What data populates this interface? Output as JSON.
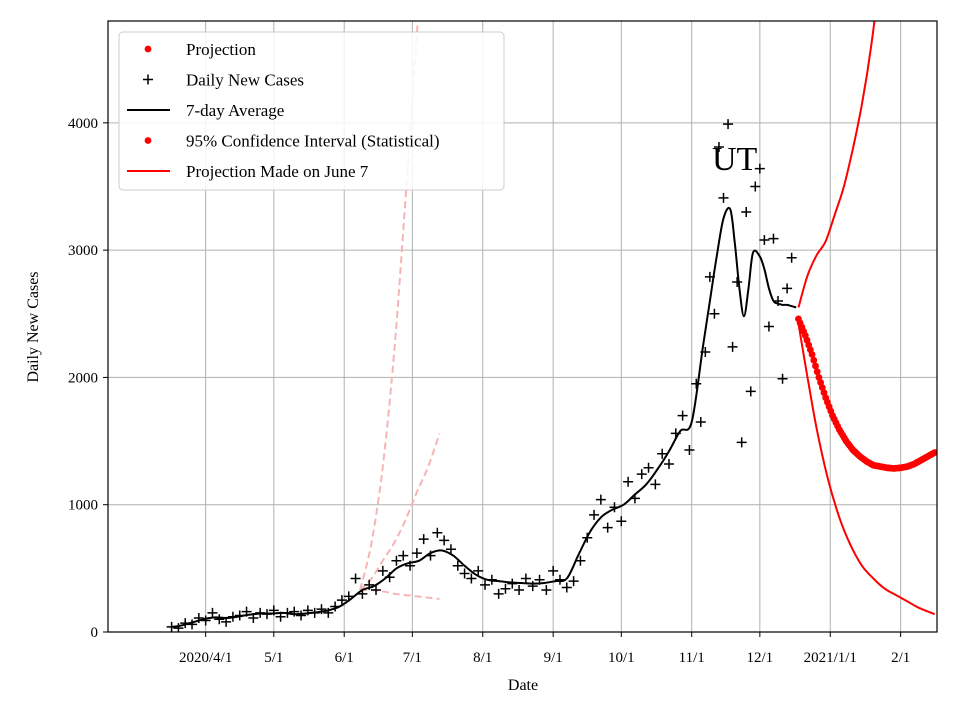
{
  "chart_data": {
    "type": "line",
    "title": "",
    "annotation": "UT",
    "xlabel": "Date",
    "ylabel": "Daily New Cases",
    "x_range_days": [
      -12,
      353
    ],
    "ylim": [
      0,
      4800
    ],
    "grid": true,
    "legend_placement": "top-left",
    "x_ticks": [
      {
        "label": "2020/4/1",
        "day": 31
      },
      {
        "label": "5/1",
        "day": 61
      },
      {
        "label": "6/1",
        "day": 92
      },
      {
        "label": "7/1",
        "day": 122
      },
      {
        "label": "8/1",
        "day": 153
      },
      {
        "label": "9/1",
        "day": 184
      },
      {
        "label": "10/1",
        "day": 214
      },
      {
        "label": "11/1",
        "day": 245
      },
      {
        "label": "12/1",
        "day": 275
      },
      {
        "label": "2021/1/1",
        "day": 306
      },
      {
        "label": "2/1",
        "day": 337
      }
    ],
    "y_ticks": [
      0,
      1000,
      2000,
      3000,
      4000
    ],
    "legend": [
      {
        "label": "Projection",
        "style": "dot",
        "color": "#ff0000"
      },
      {
        "label": "Daily New Cases",
        "style": "plus",
        "color": "#000000"
      },
      {
        "label": "7-day Average",
        "style": "line",
        "color": "#000000"
      },
      {
        "label": "95% Confidence Interval (Statistical)",
        "style": "dot",
        "color": "#ff0000"
      },
      {
        "label": "Projection Made on June 7",
        "style": "line",
        "color": "#ff0000"
      }
    ],
    "series": [
      {
        "name": "7-day Average",
        "color": "#000000",
        "x_day": [
          16,
          20,
          25,
          30,
          35,
          40,
          45,
          50,
          55,
          60,
          65,
          70,
          75,
          80,
          85,
          90,
          95,
          100,
          105,
          110,
          115,
          120,
          125,
          130,
          135,
          140,
          145,
          150,
          155,
          160,
          165,
          170,
          175,
          180,
          185,
          190,
          195,
          200,
          205,
          210,
          215,
          220,
          225,
          230,
          235,
          240,
          245,
          250,
          253,
          256,
          259,
          262,
          264,
          266,
          268,
          270,
          272,
          275,
          277,
          279,
          281,
          283,
          285,
          287,
          289,
          291
        ],
        "y": [
          40,
          50,
          75,
          100,
          115,
          110,
          120,
          135,
          145,
          145,
          150,
          140,
          145,
          155,
          170,
          200,
          260,
          330,
          360,
          420,
          500,
          540,
          560,
          620,
          640,
          600,
          520,
          450,
          410,
          400,
          390,
          385,
          380,
          385,
          400,
          420,
          600,
          780,
          900,
          960,
          1000,
          1080,
          1160,
          1280,
          1420,
          1580,
          1650,
          2250,
          2600,
          2950,
          3250,
          3320,
          3050,
          2700,
          2480,
          2700,
          2980,
          2950,
          2850,
          2700,
          2600,
          2580,
          2570,
          2570,
          2560,
          2550
        ]
      },
      {
        "name": "Daily New Cases",
        "color": "#000000",
        "x_day": [
          16,
          19,
          22,
          25,
          28,
          31,
          34,
          37,
          40,
          43,
          46,
          49,
          52,
          55,
          58,
          61,
          64,
          67,
          70,
          73,
          76,
          79,
          82,
          85,
          88,
          91,
          94,
          97,
          100,
          103,
          106,
          109,
          112,
          115,
          118,
          121,
          124,
          127,
          130,
          133,
          136,
          139,
          142,
          145,
          148,
          151,
          154,
          157,
          160,
          163,
          166,
          169,
          172,
          175,
          178,
          181,
          184,
          187,
          190,
          193,
          196,
          199,
          202,
          205,
          208,
          211,
          214,
          217,
          220,
          223,
          226,
          229,
          232,
          235,
          238,
          241,
          244,
          247,
          249,
          251,
          253,
          255,
          257,
          259,
          261,
          263,
          265,
          267,
          269,
          271,
          273,
          275,
          277,
          279,
          281,
          283,
          285,
          287,
          289
        ],
        "y": [
          40,
          30,
          70,
          60,
          110,
          90,
          150,
          100,
          80,
          120,
          130,
          160,
          110,
          150,
          140,
          170,
          120,
          150,
          160,
          130,
          170,
          150,
          180,
          150,
          200,
          250,
          280,
          420,
          300,
          370,
          330,
          480,
          430,
          560,
          600,
          520,
          620,
          730,
          600,
          780,
          720,
          650,
          520,
          460,
          420,
          480,
          370,
          410,
          300,
          340,
          380,
          330,
          420,
          360,
          410,
          330,
          480,
          410,
          350,
          400,
          560,
          740,
          920,
          1040,
          820,
          980,
          870,
          1180,
          1050,
          1240,
          1290,
          1160,
          1400,
          1320,
          1560,
          1700,
          1430,
          1950,
          1650,
          2200,
          2790,
          2500,
          3810,
          3410,
          3990,
          2240,
          2750,
          1490,
          3300,
          1890,
          3500,
          3640,
          3080,
          2400,
          3090,
          2600,
          1990,
          2700,
          2940
        ]
      },
      {
        "name": "Projection",
        "color": "#ff0000",
        "x_day": [
          292,
          295,
          298,
          301,
          304,
          307,
          310,
          313,
          316,
          319,
          322,
          325,
          328,
          331,
          334,
          337,
          340,
          343,
          346,
          349,
          352
        ],
        "y": [
          2460,
          2330,
          2180,
          2000,
          1840,
          1700,
          1590,
          1500,
          1430,
          1380,
          1340,
          1310,
          1300,
          1290,
          1285,
          1290,
          1300,
          1320,
          1350,
          1380,
          1410
        ]
      },
      {
        "name": "95% Confidence Interval (Statistical)",
        "color": "#ff0000",
        "upper": {
          "x_day": [
            292,
            296,
            300,
            304,
            308,
            312,
            316,
            320,
            324,
            328,
            332,
            334
          ],
          "y": [
            2550,
            2800,
            2960,
            3070,
            3280,
            3500,
            3800,
            4150,
            4600,
            5200,
            6000,
            6500
          ]
        },
        "lower": {
          "x_day": [
            292,
            296,
            300,
            305,
            310,
            315,
            320,
            325,
            330,
            335,
            340,
            345,
            352
          ],
          "y": [
            2420,
            2000,
            1600,
            1200,
            900,
            680,
            520,
            420,
            340,
            290,
            240,
            190,
            140
          ]
        }
      },
      {
        "name": "Projection Made on June 7",
        "color": "#f8b4b4",
        "dashed": true,
        "center": {
          "x_day": [
            99,
            104,
            109,
            114,
            119,
            124,
            129,
            134
          ],
          "y": [
            330,
            420,
            560,
            700,
            880,
            1100,
            1300,
            1560
          ]
        },
        "upper": {
          "x_day": [
            99,
            104,
            109,
            114,
            119,
            124,
            126
          ],
          "y": [
            330,
            700,
            1300,
            2200,
            3400,
            4700,
            5200
          ]
        },
        "lower": {
          "x_day": [
            99,
            104,
            109,
            114,
            119,
            124,
            129,
            134
          ],
          "y": [
            330,
            330,
            320,
            300,
            290,
            280,
            270,
            260
          ]
        }
      }
    ]
  }
}
